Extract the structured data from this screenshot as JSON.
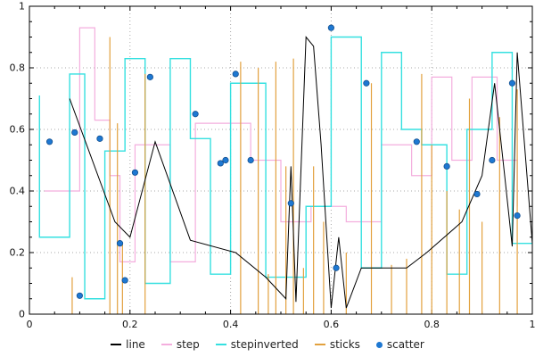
{
  "chart_data": {
    "type": "mixed",
    "title": "",
    "xlabel": "",
    "ylabel": "",
    "xlim": [
      0,
      1
    ],
    "ylim": [
      0,
      1
    ],
    "grid": "dotted",
    "legend_position": "bottom",
    "minor_tick_step": 0.05,
    "x_ticks": {
      "values": [
        0,
        0.2,
        0.4,
        0.6,
        0.8,
        1
      ],
      "labels": [
        "0",
        "0.2",
        "0.4",
        "0.6",
        "0.8",
        "1"
      ]
    },
    "y_ticks": {
      "values": [
        0,
        0.2,
        0.4,
        0.6,
        0.8,
        1
      ],
      "labels": [
        "0",
        "0.2",
        "0.4",
        "0.6",
        "0.8",
        "1"
      ]
    },
    "colors": {
      "grid": "#aaaaaa",
      "frame": "#000000",
      "line": "#000000",
      "step": "#f4aede",
      "stepinverted": "#35e0e0",
      "sticks": "#e2a13e",
      "scatter": "#1e78d2",
      "scatter_edge": "#14508f"
    },
    "series": [
      {
        "name": "line",
        "type": "line",
        "color": "#000000",
        "points": [
          [
            0.08,
            0.7
          ],
          [
            0.17,
            0.3
          ],
          [
            0.2,
            0.25
          ],
          [
            0.25,
            0.56
          ],
          [
            0.32,
            0.24
          ],
          [
            0.41,
            0.2
          ],
          [
            0.47,
            0.12
          ],
          [
            0.51,
            0.05
          ],
          [
            0.52,
            0.48
          ],
          [
            0.53,
            0.04
          ],
          [
            0.55,
            0.9
          ],
          [
            0.565,
            0.87
          ],
          [
            0.58,
            0.55
          ],
          [
            0.6,
            0.02
          ],
          [
            0.615,
            0.25
          ],
          [
            0.63,
            0.02
          ],
          [
            0.66,
            0.15
          ],
          [
            0.75,
            0.15
          ],
          [
            0.79,
            0.2
          ],
          [
            0.86,
            0.3
          ],
          [
            0.9,
            0.45
          ],
          [
            0.925,
            0.75
          ],
          [
            0.945,
            0.45
          ],
          [
            0.96,
            0.22
          ],
          [
            0.97,
            0.85
          ],
          [
            1.0,
            0.23
          ]
        ]
      },
      {
        "name": "step",
        "type": "step",
        "color": "#f4aede",
        "points": [
          [
            0.03,
            0.4
          ],
          [
            0.1,
            0.93
          ],
          [
            0.13,
            0.63
          ],
          [
            0.16,
            0.45
          ],
          [
            0.18,
            0.17
          ],
          [
            0.21,
            0.55
          ],
          [
            0.28,
            0.17
          ],
          [
            0.33,
            0.62
          ],
          [
            0.4,
            0.62
          ],
          [
            0.44,
            0.5
          ],
          [
            0.5,
            0.3
          ],
          [
            0.56,
            0.35
          ],
          [
            0.63,
            0.3
          ],
          [
            0.7,
            0.55
          ],
          [
            0.76,
            0.45
          ],
          [
            0.8,
            0.77
          ],
          [
            0.84,
            0.5
          ],
          [
            0.88,
            0.77
          ],
          [
            0.93,
            0.5
          ],
          [
            0.97,
            0.35
          ]
        ]
      },
      {
        "name": "stepinverted",
        "type": "stepinverted",
        "color": "#35e0e0",
        "points": [
          [
            0.02,
            0.71
          ],
          [
            0.08,
            0.25
          ],
          [
            0.11,
            0.78
          ],
          [
            0.15,
            0.05
          ],
          [
            0.19,
            0.53
          ],
          [
            0.23,
            0.83
          ],
          [
            0.28,
            0.1
          ],
          [
            0.32,
            0.83
          ],
          [
            0.36,
            0.57
          ],
          [
            0.4,
            0.13
          ],
          [
            0.47,
            0.75
          ],
          [
            0.55,
            0.12
          ],
          [
            0.6,
            0.35
          ],
          [
            0.66,
            0.9
          ],
          [
            0.7,
            0.15
          ],
          [
            0.74,
            0.85
          ],
          [
            0.78,
            0.6
          ],
          [
            0.83,
            0.55
          ],
          [
            0.87,
            0.13
          ],
          [
            0.92,
            0.6
          ],
          [
            0.96,
            0.85
          ],
          [
            1.0,
            0.23
          ]
        ]
      },
      {
        "name": "sticks",
        "type": "sticks",
        "color": "#e2a13e",
        "points": [
          [
            0.085,
            0.12
          ],
          [
            0.16,
            0.9
          ],
          [
            0.175,
            0.62
          ],
          [
            0.185,
            0.23
          ],
          [
            0.23,
            0.78
          ],
          [
            0.42,
            0.82
          ],
          [
            0.455,
            0.8
          ],
          [
            0.475,
            0.13
          ],
          [
            0.49,
            0.82
          ],
          [
            0.51,
            0.48
          ],
          [
            0.525,
            0.83
          ],
          [
            0.545,
            0.15
          ],
          [
            0.565,
            0.48
          ],
          [
            0.585,
            0.3
          ],
          [
            0.63,
            0.2
          ],
          [
            0.68,
            0.75
          ],
          [
            0.72,
            0.16
          ],
          [
            0.75,
            0.18
          ],
          [
            0.78,
            0.78
          ],
          [
            0.8,
            0.55
          ],
          [
            0.83,
            0.4
          ],
          [
            0.855,
            0.34
          ],
          [
            0.875,
            0.7
          ],
          [
            0.9,
            0.3
          ],
          [
            0.935,
            0.64
          ],
          [
            0.97,
            0.73
          ]
        ]
      },
      {
        "name": "scatter",
        "type": "scatter",
        "color": "#1e78d2",
        "points": [
          [
            0.04,
            0.56
          ],
          [
            0.09,
            0.59
          ],
          [
            0.1,
            0.06
          ],
          [
            0.14,
            0.57
          ],
          [
            0.18,
            0.23
          ],
          [
            0.19,
            0.11
          ],
          [
            0.21,
            0.46
          ],
          [
            0.24,
            0.77
          ],
          [
            0.33,
            0.65
          ],
          [
            0.38,
            0.49
          ],
          [
            0.39,
            0.5
          ],
          [
            0.41,
            0.78
          ],
          [
            0.44,
            0.5
          ],
          [
            0.52,
            0.36
          ],
          [
            0.6,
            0.93
          ],
          [
            0.61,
            0.15
          ],
          [
            0.67,
            0.75
          ],
          [
            0.77,
            0.56
          ],
          [
            0.83,
            0.48
          ],
          [
            0.89,
            0.39
          ],
          [
            0.92,
            0.5
          ],
          [
            0.96,
            0.75
          ],
          [
            0.97,
            0.32
          ]
        ]
      }
    ],
    "legend": {
      "labels": [
        "line",
        "step",
        "stepinverted",
        "sticks",
        "scatter"
      ]
    }
  }
}
